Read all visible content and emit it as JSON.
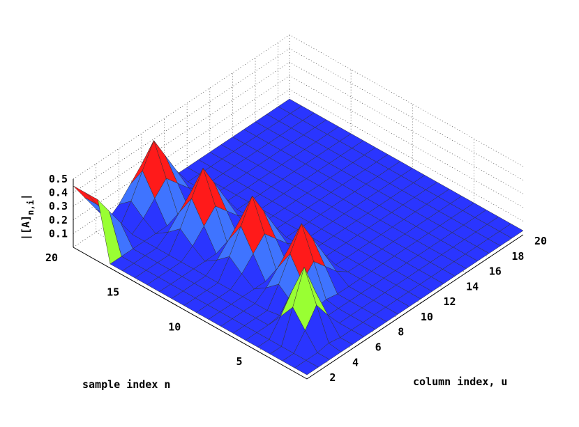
{
  "chart_data": {
    "type": "surface",
    "title": "",
    "xlabel": "column index, u",
    "ylabel": "sample index n",
    "zlabel": "|[A]",
    "zlabel_subscript": "n,i",
    "zlabel_close": "|",
    "xlim": [
      1,
      20
    ],
    "ylim": [
      1,
      20
    ],
    "zlim": [
      0,
      0.5
    ],
    "xticks": [
      "2",
      "4",
      "6",
      "8",
      "10",
      "12",
      "14",
      "16",
      "18",
      "20"
    ],
    "yticks": [
      "5",
      "10",
      "15",
      "20"
    ],
    "zticks": [
      "0.1",
      "0.2",
      "0.3",
      "0.4",
      "0.5"
    ],
    "grid": true,
    "colormap": [
      {
        "max": 0.2,
        "color": "#2a35ff"
      },
      {
        "max": 0.3,
        "color": "#3f74ff"
      },
      {
        "max": 0.4,
        "color": "#99ff33"
      },
      {
        "max": 0.5,
        "color": "#ff1a1a"
      }
    ],
    "ridges": [
      {
        "column": 4,
        "sample": 4,
        "peak": 0.5,
        "width": 0.5
      },
      {
        "column": 7,
        "sample": 7,
        "peak": 0.5,
        "width": 1.4
      },
      {
        "column": 7,
        "sample": 11,
        "peak": 0.5,
        "width": 1.4
      },
      {
        "column": 7,
        "sample": 15,
        "peak": 0.5,
        "width": 1.4
      },
      {
        "column": 7,
        "sample": 19,
        "peak": 0.5,
        "width": 1.4
      }
    ],
    "edge_bump": {
      "column": 20,
      "sample_range": [
        18,
        20
      ],
      "peak": 0.45
    },
    "base_level": 0.03
  }
}
